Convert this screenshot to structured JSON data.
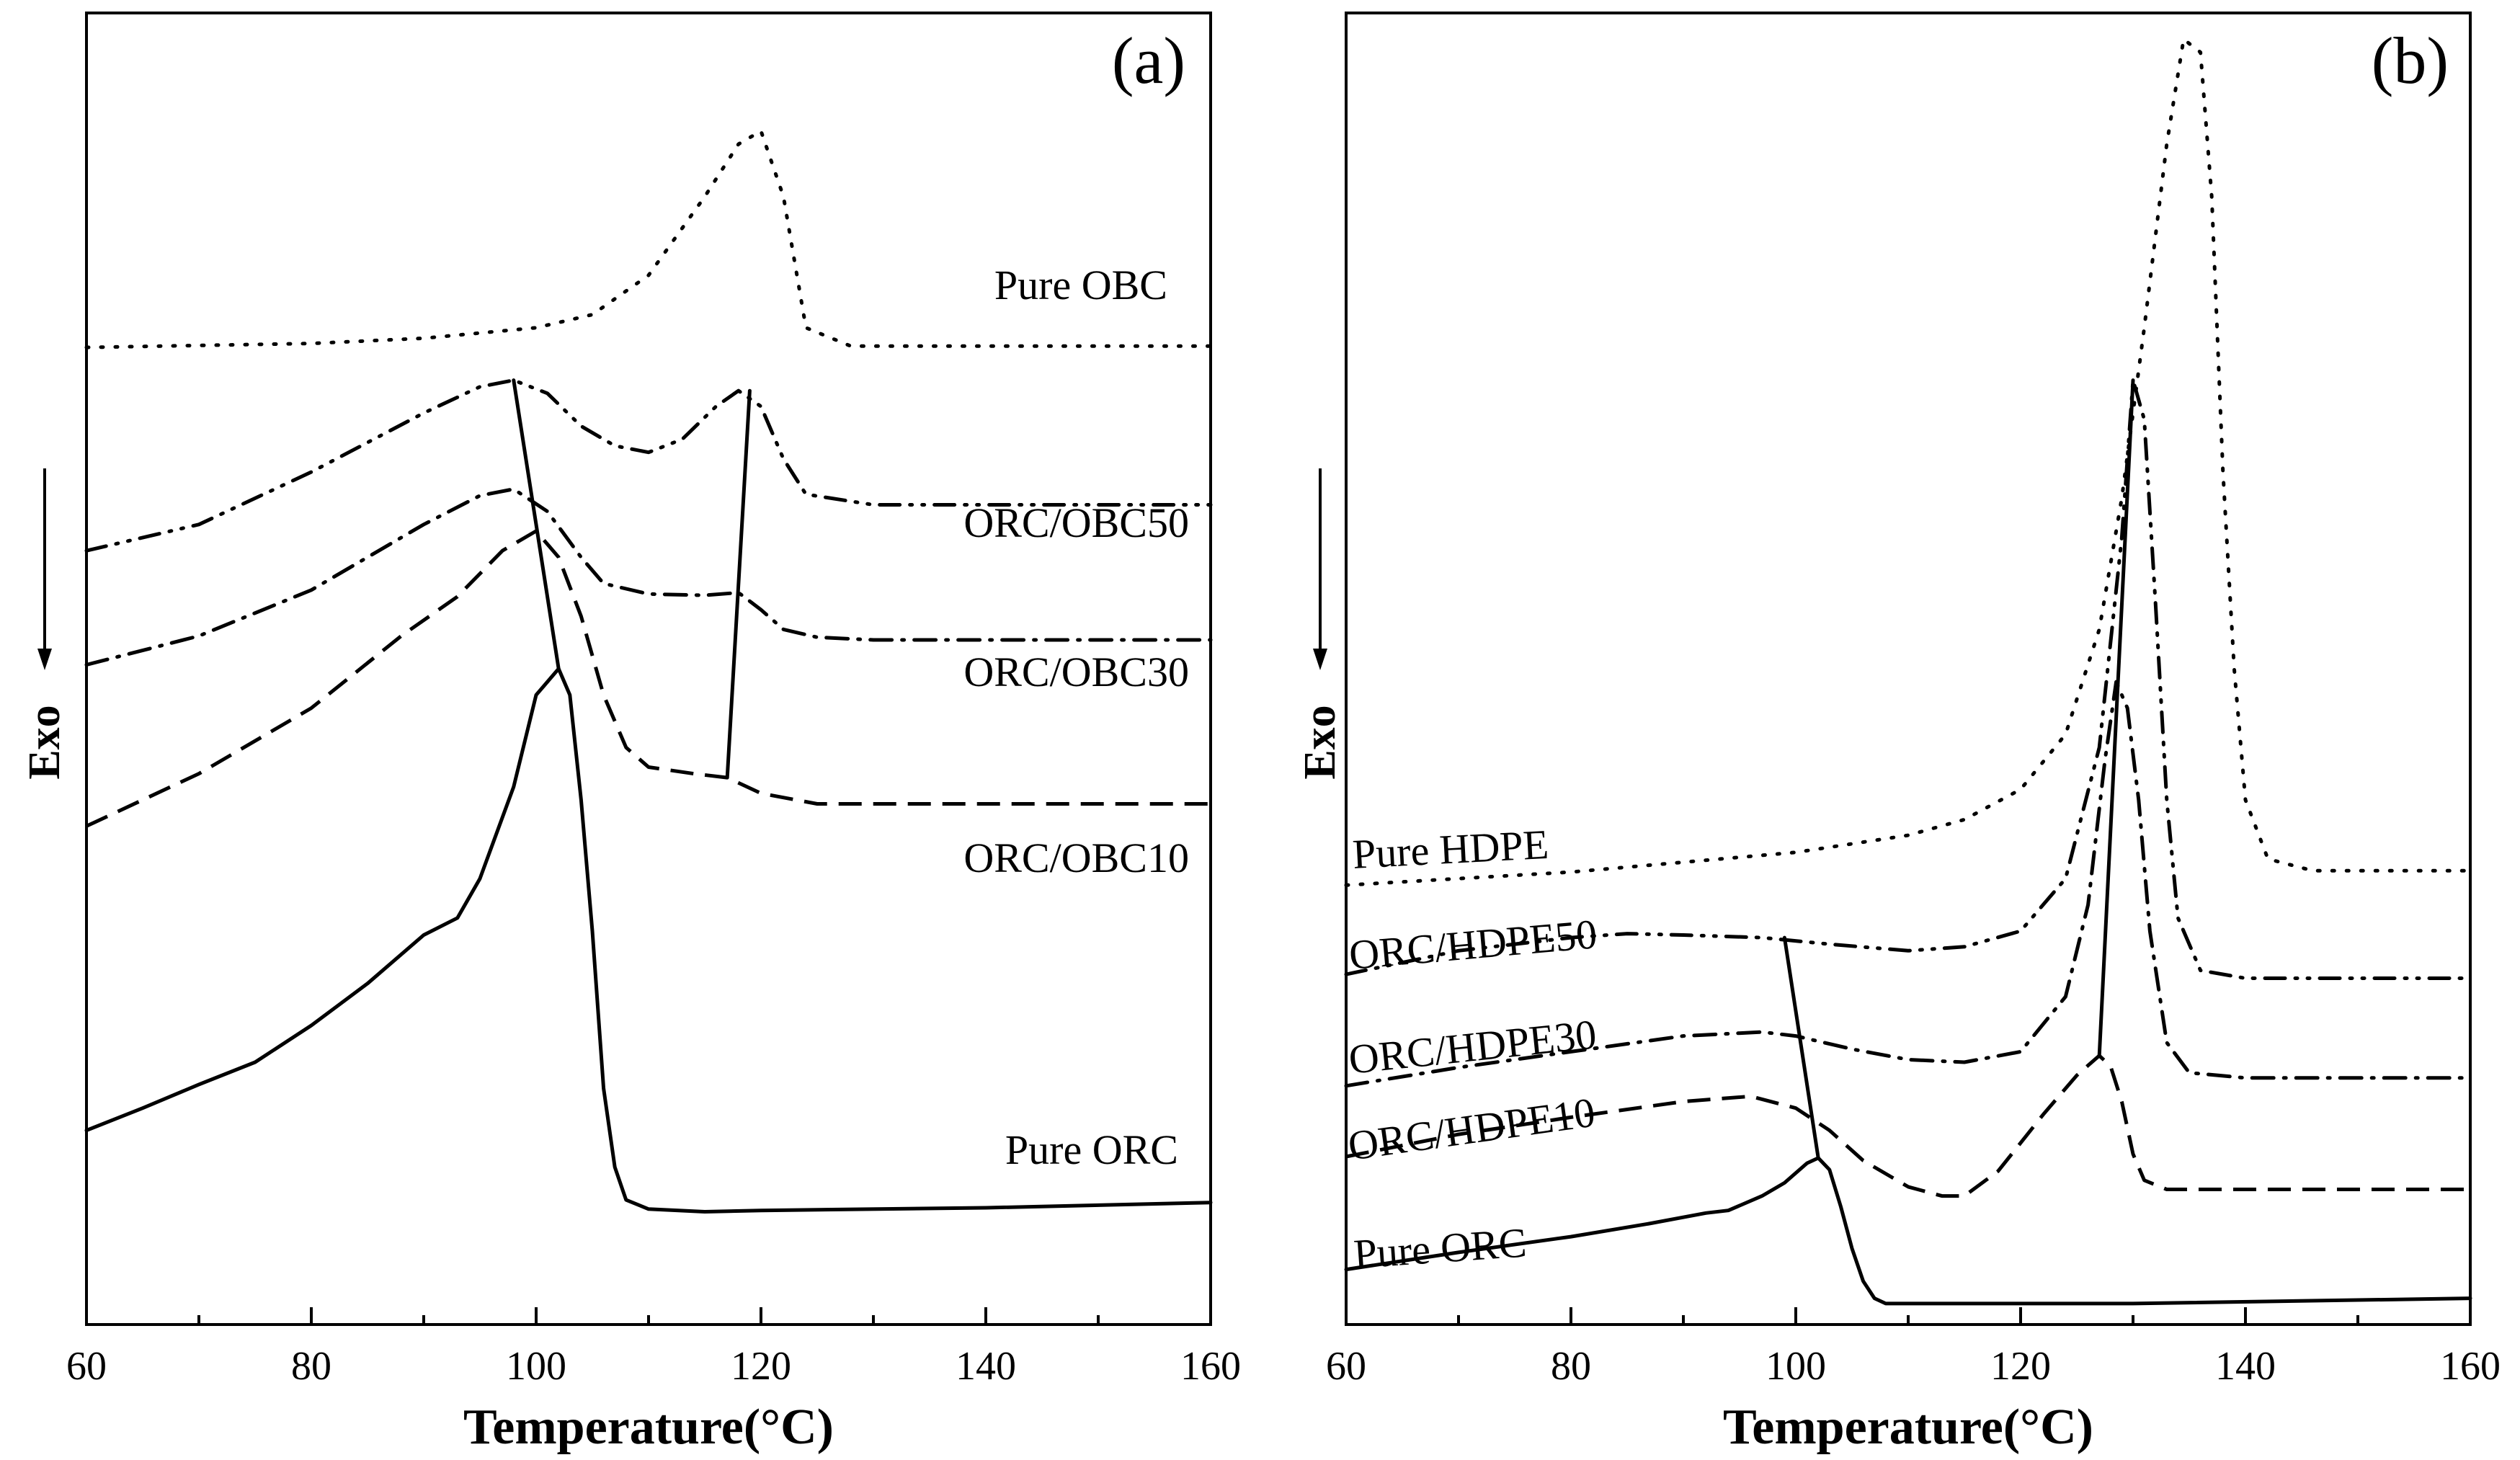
{
  "figure": {
    "exo_label": "Exo",
    "panels": [
      {
        "id": "a",
        "label": "(a)",
        "curve_labels": [
          "Pure OBC",
          "ORC/OBC50",
          "ORC/OBC30",
          "ORC/OBC10",
          "Pure ORC"
        ]
      },
      {
        "id": "b",
        "label": "(b)",
        "curve_labels": [
          "Pure HDPE",
          "ORC/HDPE50",
          "ORC/HDPE30",
          "ORC/HDPE10",
          "Pure ORC"
        ]
      }
    ]
  },
  "chart_data": [
    {
      "type": "line",
      "panel": "(a)",
      "xlabel": "Temperature(°C)",
      "ylabel": "Exo",
      "xlim": [
        60,
        160
      ],
      "ylim": [
        0,
        1.0
      ],
      "xticks": [
        60,
        80,
        100,
        120,
        140,
        160
      ],
      "y_tick_labels": false,
      "exo_arrow": "down",
      "series": [
        {
          "name": "Pure OBC",
          "style": "dotted",
          "points": [
            [
              60,
              0.745
            ],
            [
              80,
              0.748
            ],
            [
              90,
              0.752
            ],
            [
              100,
              0.76
            ],
            [
              105,
              0.77
            ],
            [
              110,
              0.8
            ],
            [
              115,
              0.86
            ],
            [
              118,
              0.9
            ],
            [
              120,
              0.91
            ],
            [
              122,
              0.86
            ],
            [
              124,
              0.76
            ],
            [
              128,
              0.746
            ],
            [
              140,
              0.746
            ],
            [
              160,
              0.746
            ]
          ]
        },
        {
          "name": "ORC/OBC50",
          "style": "dash-dot-dot",
          "points": [
            [
              60,
              0.59
            ],
            [
              70,
              0.61
            ],
            [
              80,
              0.65
            ],
            [
              90,
              0.695
            ],
            [
              95,
              0.715
            ],
            [
              98,
              0.72
            ],
            [
              101,
              0.71
            ],
            [
              104,
              0.685
            ],
            [
              107,
              0.67
            ],
            [
              110,
              0.665
            ],
            [
              113,
              0.675
            ],
            [
              116,
              0.7
            ],
            [
              118,
              0.712
            ],
            [
              120,
              0.7
            ],
            [
              122,
              0.66
            ],
            [
              124,
              0.633
            ],
            [
              130,
              0.625
            ],
            [
              160,
              0.625
            ]
          ]
        },
        {
          "name": "ORC/OBC30",
          "style": "dash-dot",
          "points": [
            [
              60,
              0.503
            ],
            [
              70,
              0.525
            ],
            [
              80,
              0.56
            ],
            [
              90,
              0.61
            ],
            [
              95,
              0.632
            ],
            [
              98,
              0.637
            ],
            [
              101,
              0.62
            ],
            [
              104,
              0.585
            ],
            [
              106,
              0.565
            ],
            [
              110,
              0.557
            ],
            [
              115,
              0.556
            ],
            [
              118,
              0.558
            ],
            [
              120,
              0.545
            ],
            [
              122,
              0.53
            ],
            [
              125,
              0.524
            ],
            [
              130,
              0.522
            ],
            [
              160,
              0.522
            ]
          ]
        },
        {
          "name": "ORC/OBC10",
          "style": "dashed",
          "points": [
            [
              60,
              0.38
            ],
            [
              70,
              0.42
            ],
            [
              80,
              0.47
            ],
            [
              88,
              0.525
            ],
            [
              93,
              0.555
            ],
            [
              97,
              0.59
            ],
            [
              100,
              0.605
            ],
            [
              102,
              0.585
            ],
            [
              104,
              0.54
            ],
            [
              106,
              0.48
            ],
            [
              108,
              0.44
            ],
            [
              110,
              0.425
            ],
            [
              114,
              0.42
            ],
            [
              117,
              0.417
            ],
            [
              120,
              0.405
            ],
            [
              125,
              0.397
            ],
            [
              135,
              0.397
            ],
            [
              160,
              0.397
            ]
          ]
        },
        {
          "name": "Pure ORC",
          "style": "solid",
          "points": [
            [
              60,
              0.148
            ],
            [
              65,
              0.165
            ],
            [
              70,
              0.183
            ],
            [
              75,
              0.2
            ],
            [
              80,
              0.228
            ],
            [
              85,
              0.26
            ],
            [
              90,
              0.297
            ],
            [
              93,
              0.31
            ],
            [
              95,
              0.34
            ],
            [
              98,
              0.41
            ],
            [
              100,
              0.48
            ],
            [
              102,
              0.5
            ],
            [
              103,
              0.48
            ],
            [
              104,
              0.4
            ],
            [
              105,
              0.3
            ],
            [
              106,
              0.18
            ],
            [
              107,
              0.12
            ],
            [
              108,
              0.095
            ],
            [
              110,
              0.088
            ],
            [
              115,
              0.086
            ],
            [
              120,
              0.087
            ],
            [
              140,
              0.089
            ],
            [
              160,
              0.093
            ]
          ]
        },
        {
          "name": "trend-low-T",
          "style": "trend",
          "points": [
            [
              98,
              0.72
            ],
            [
              102,
              0.5
            ]
          ]
        },
        {
          "name": "trend-high-T",
          "style": "trend",
          "points": [
            [
              119,
              0.712
            ],
            [
              117,
              0.417
            ]
          ]
        }
      ]
    },
    {
      "type": "line",
      "panel": "(b)",
      "xlabel": "Temperature(°C)",
      "ylabel": "Exo",
      "xlim": [
        60,
        160
      ],
      "ylim": [
        0,
        1.0
      ],
      "xticks": [
        60,
        80,
        100,
        120,
        140,
        160
      ],
      "y_tick_labels": false,
      "exo_arrow": "down",
      "series": [
        {
          "name": "Pure HDPE",
          "style": "dotted",
          "points": [
            [
              60,
              0.335
            ],
            [
              80,
              0.345
            ],
            [
              100,
              0.36
            ],
            [
              110,
              0.373
            ],
            [
              115,
              0.385
            ],
            [
              120,
              0.408
            ],
            [
              124,
              0.45
            ],
            [
              127,
              0.53
            ],
            [
              129,
              0.63
            ],
            [
              131,
              0.76
            ],
            [
              133,
              0.9
            ],
            [
              134.5,
              0.98
            ],
            [
              136,
              0.97
            ],
            [
              137,
              0.86
            ],
            [
              138,
              0.65
            ],
            [
              139,
              0.5
            ],
            [
              140,
              0.4
            ],
            [
              142,
              0.355
            ],
            [
              146,
              0.346
            ],
            [
              150,
              0.346
            ],
            [
              160,
              0.346
            ]
          ]
        },
        {
          "name": "ORC/HDPE50",
          "style": "dash-dot-dot",
          "points": [
            [
              60,
              0.267
            ],
            [
              70,
              0.285
            ],
            [
              80,
              0.295
            ],
            [
              85,
              0.298
            ],
            [
              90,
              0.297
            ],
            [
              97,
              0.295
            ],
            [
              103,
              0.29
            ],
            [
              110,
              0.285
            ],
            [
              115,
              0.288
            ],
            [
              120,
              0.3
            ],
            [
              124,
              0.34
            ],
            [
              127,
              0.44
            ],
            [
              129,
              0.6
            ],
            [
              130,
              0.72
            ],
            [
              131,
              0.69
            ],
            [
              132,
              0.55
            ],
            [
              133,
              0.4
            ],
            [
              134,
              0.31
            ],
            [
              136,
              0.27
            ],
            [
              140,
              0.264
            ],
            [
              160,
              0.264
            ]
          ]
        },
        {
          "name": "ORC/HDPE30",
          "style": "dash-dot",
          "points": [
            [
              60,
              0.182
            ],
            [
              70,
              0.196
            ],
            [
              80,
              0.208
            ],
            [
              90,
              0.22
            ],
            [
              97,
              0.223
            ],
            [
              100,
              0.22
            ],
            [
              105,
              0.21
            ],
            [
              110,
              0.202
            ],
            [
              115,
              0.2
            ],
            [
              120,
              0.208
            ],
            [
              124,
              0.25
            ],
            [
              126,
              0.32
            ],
            [
              127.5,
              0.43
            ],
            [
              128.5,
              0.49
            ],
            [
              129.5,
              0.47
            ],
            [
              130.5,
              0.4
            ],
            [
              131.5,
              0.3
            ],
            [
              133,
              0.215
            ],
            [
              135,
              0.192
            ],
            [
              140,
              0.188
            ],
            [
              160,
              0.188
            ]
          ]
        },
        {
          "name": "ORC/HDPE10",
          "style": "dashed",
          "points": [
            [
              60,
              0.128
            ],
            [
              70,
              0.145
            ],
            [
              80,
              0.158
            ],
            [
              90,
              0.17
            ],
            [
              96,
              0.174
            ],
            [
              100,
              0.165
            ],
            [
              103,
              0.148
            ],
            [
              106,
              0.125
            ],
            [
              110,
              0.105
            ],
            [
              113,
              0.098
            ],
            [
              115,
              0.098
            ],
            [
              118,
              0.117
            ],
            [
              122,
              0.16
            ],
            [
              125,
              0.19
            ],
            [
              127,
              0.205
            ],
            [
              128,
              0.197
            ],
            [
              129,
              0.17
            ],
            [
              130,
              0.13
            ],
            [
              131,
              0.11
            ],
            [
              133,
              0.103
            ],
            [
              140,
              0.103
            ],
            [
              160,
              0.103
            ]
          ]
        },
        {
          "name": "Pure ORC",
          "style": "solid",
          "points": [
            [
              60,
              0.042
            ],
            [
              70,
              0.055
            ],
            [
              80,
              0.067
            ],
            [
              87,
              0.077
            ],
            [
              92,
              0.085
            ],
            [
              94,
              0.087
            ],
            [
              97,
              0.098
            ],
            [
              99,
              0.108
            ],
            [
              101,
              0.123
            ],
            [
              102,
              0.127
            ],
            [
              103,
              0.118
            ],
            [
              104,
              0.09
            ],
            [
              105,
              0.058
            ],
            [
              106,
              0.033
            ],
            [
              107,
              0.02
            ],
            [
              108,
              0.016
            ],
            [
              115,
              0.016
            ],
            [
              130,
              0.016
            ],
            [
              160,
              0.02
            ]
          ]
        },
        {
          "name": "trend-low-T",
          "style": "trend",
          "points": [
            [
              99,
              0.295
            ],
            [
              102,
              0.127
            ]
          ]
        },
        {
          "name": "trend-high-T",
          "style": "trend",
          "points": [
            [
              130,
              0.72
            ],
            [
              127,
              0.205
            ]
          ]
        }
      ]
    }
  ]
}
